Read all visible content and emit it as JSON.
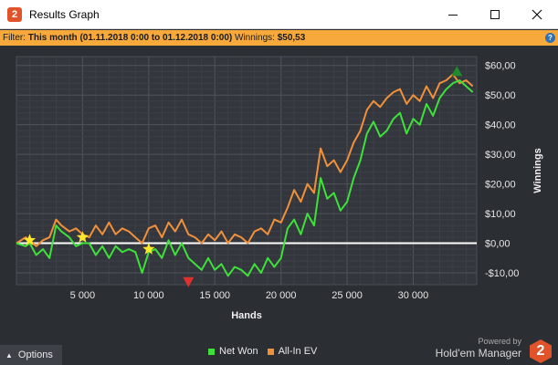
{
  "window": {
    "title": "Results Graph",
    "app_icon_glyph": "2"
  },
  "filter": {
    "label": "Filter:",
    "period": "This month (01.11.2018 0:00 to 01.12.2018 0:00)",
    "winnings_label": "Winnings:",
    "winnings_value": "$50,53",
    "help_glyph": "?"
  },
  "footer": {
    "options_label": "Options",
    "powered_by": "Powered by",
    "brand": "Hold'em Manager",
    "logo_glyph": "2"
  },
  "colors": {
    "net_won": "#3ee03a",
    "all_in_ev": "#f0903a",
    "background": "#2b2e33",
    "filter_bar": "#f7a93b",
    "zero_line": "#ffffff",
    "peak_marker": "#1f8a2e",
    "trough_marker": "#e0302b",
    "star_marker": "#ffe82a"
  },
  "chart_data": {
    "type": "line",
    "xlabel": "Hands",
    "ylabel": "Winnings",
    "xlim": [
      0,
      34800
    ],
    "ylim": [
      -14,
      63
    ],
    "x_ticks": [
      5000,
      10000,
      15000,
      20000,
      25000,
      30000
    ],
    "x_tick_labels": [
      "5 000",
      "10 000",
      "15 000",
      "20 000",
      "25 000",
      "30 000"
    ],
    "y_ticks": [
      -10,
      0,
      10,
      20,
      30,
      40,
      50,
      60
    ],
    "y_tick_labels": [
      "-$10,00",
      "$0,00",
      "$10,00",
      "$20,00",
      "$30,00",
      "$40,00",
      "$50,00",
      "$60,00"
    ],
    "grid": true,
    "legend": "bottom-center",
    "series": [
      {
        "name": "Net Won",
        "x": [
          0,
          700,
          1000,
          1500,
          2000,
          2500,
          3000,
          3400,
          4000,
          4500,
          5000,
          5500,
          6000,
          6500,
          7000,
          7500,
          8000,
          8500,
          9000,
          9500,
          10000,
          10500,
          11000,
          11500,
          12000,
          12500,
          13000,
          13500,
          14000,
          14500,
          15000,
          15500,
          16000,
          16500,
          17000,
          17500,
          18000,
          18500,
          19000,
          19500,
          20000,
          20500,
          21000,
          21500,
          22000,
          22500,
          23000,
          23500,
          24000,
          24500,
          25000,
          25500,
          26000,
          26500,
          27000,
          27500,
          28000,
          28500,
          29000,
          29500,
          30000,
          30500,
          31000,
          31500,
          32000,
          32500,
          33000,
          33500,
          34000,
          34500
        ],
        "values": [
          0,
          -1,
          0,
          -4,
          -2,
          -5,
          6,
          4,
          2,
          -1,
          0,
          0,
          -4,
          -1,
          -5,
          -1,
          -3,
          -2,
          -3,
          -10,
          -3,
          -2,
          -5,
          1,
          -4,
          0,
          -5,
          -7,
          -9,
          -5,
          -9,
          -7,
          -11,
          -8,
          -9,
          -11,
          -7,
          -10,
          -5,
          -8,
          -5,
          5,
          8,
          3,
          10,
          6,
          22,
          15,
          17,
          11,
          14,
          22,
          28,
          37,
          41,
          36,
          38,
          42,
          44,
          37,
          42,
          40,
          47,
          43,
          49,
          52,
          54,
          55,
          53,
          51
        ]
      },
      {
        "name": "All-In EV",
        "x": [
          0,
          700,
          1000,
          1500,
          2000,
          2500,
          3000,
          3400,
          4000,
          4500,
          5000,
          5500,
          6000,
          6500,
          7000,
          7500,
          8000,
          8500,
          9000,
          9500,
          10000,
          10500,
          11000,
          11500,
          12000,
          12500,
          13000,
          13500,
          14000,
          14500,
          15000,
          15500,
          16000,
          16500,
          17000,
          17500,
          18000,
          18500,
          19000,
          19500,
          20000,
          20500,
          21000,
          21500,
          22000,
          22500,
          23000,
          23500,
          24000,
          24500,
          25000,
          25500,
          26000,
          26500,
          27000,
          27500,
          28000,
          28500,
          29000,
          29500,
          30000,
          30500,
          31000,
          31500,
          32000,
          32500,
          33000,
          33500,
          34000,
          34500
        ],
        "values": [
          0,
          2,
          1,
          -1,
          1,
          2,
          8,
          6,
          4,
          5,
          3,
          2,
          6,
          3,
          7,
          3,
          5,
          4,
          2,
          0,
          5,
          6,
          2,
          7,
          4,
          8,
          3,
          2,
          0,
          3,
          1,
          4,
          0,
          3,
          2,
          0,
          4,
          5,
          3,
          8,
          7,
          12,
          18,
          14,
          20,
          17,
          32,
          26,
          28,
          24,
          28,
          34,
          38,
          45,
          48,
          46,
          49,
          51,
          52,
          47,
          50,
          48,
          53,
          49,
          54,
          55,
          57,
          54,
          55,
          53
        ]
      }
    ],
    "markers": [
      {
        "type": "peak",
        "shape": "triangle-up",
        "x": 33300,
        "value": 58
      },
      {
        "type": "trough",
        "shape": "triangle-down",
        "x": 13000,
        "value": -13
      },
      {
        "type": "star",
        "x": 1000,
        "value": 1
      },
      {
        "type": "star",
        "x": 5000,
        "value": 2
      },
      {
        "type": "star",
        "x": 10000,
        "value": -2
      }
    ]
  }
}
